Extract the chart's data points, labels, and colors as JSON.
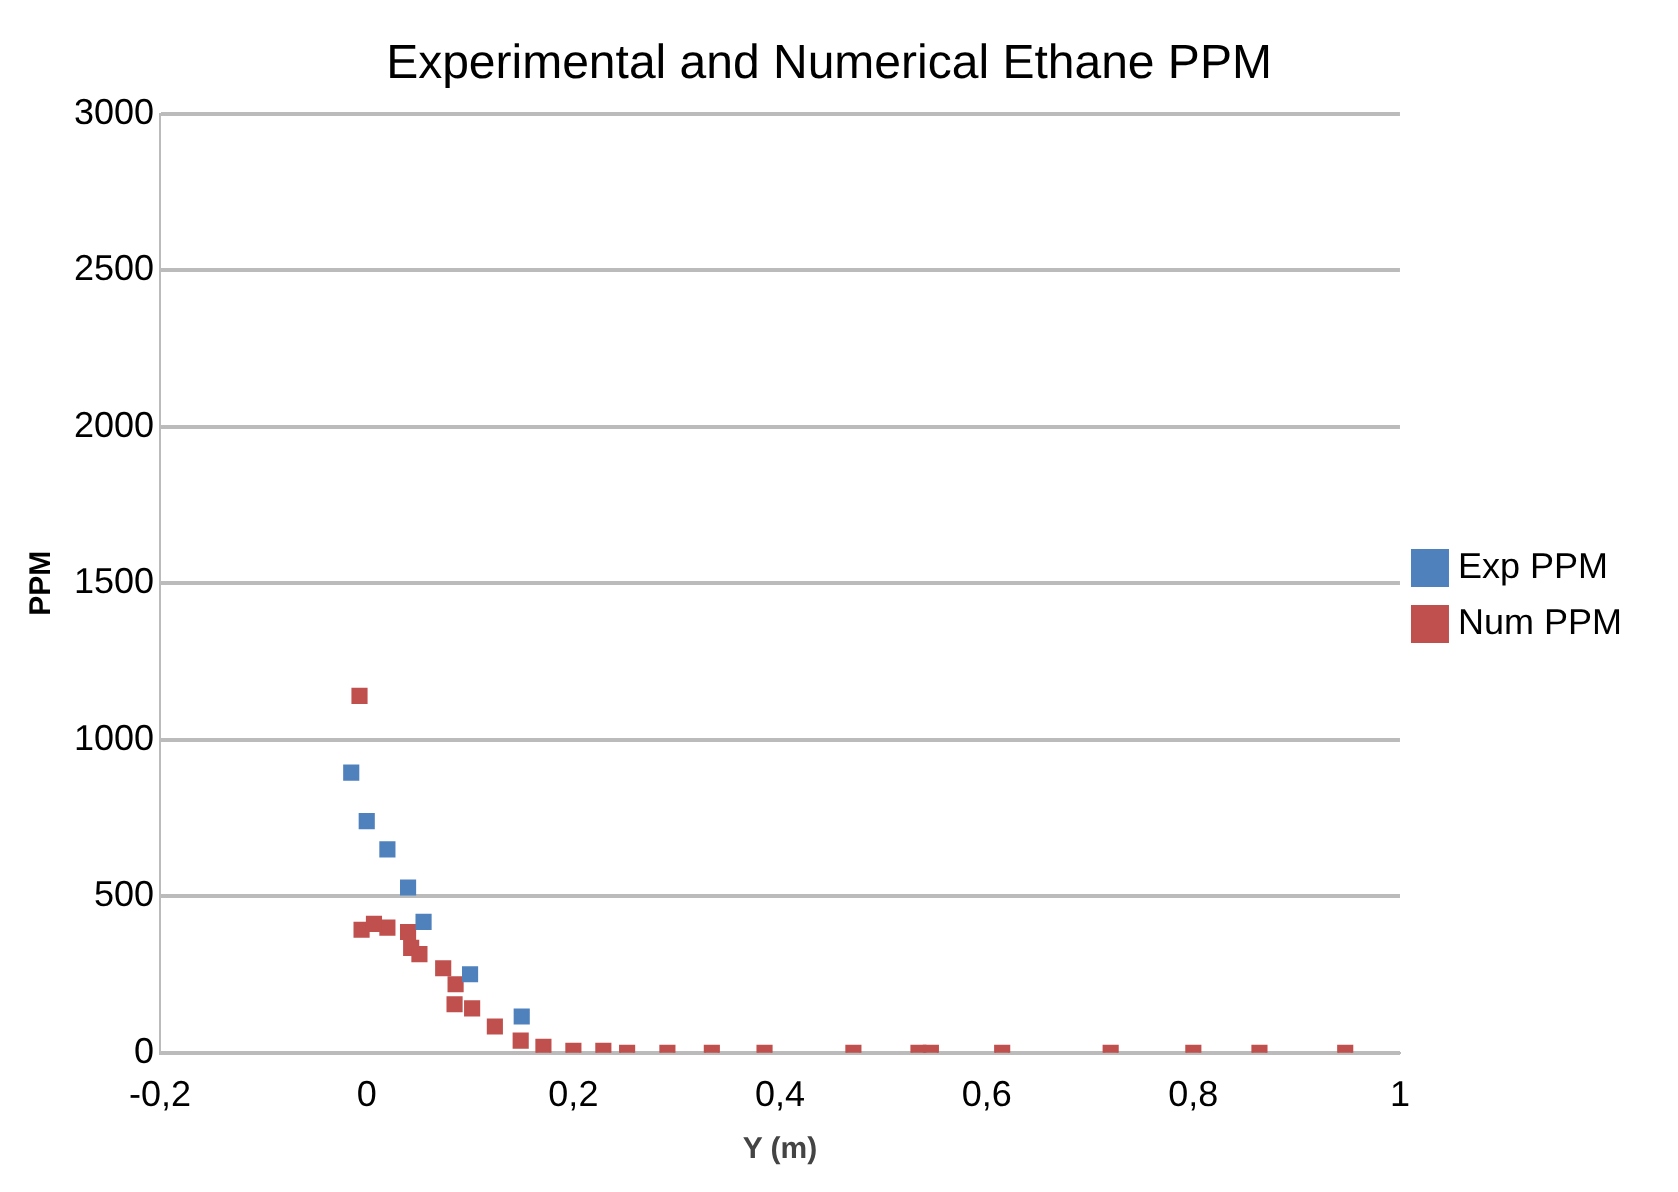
{
  "chart_data": {
    "type": "scatter",
    "title": "Experimental and Numerical Ethane PPM",
    "xlabel": "Y (m)",
    "ylabel": "PPM",
    "xlim": [
      -0.2,
      1
    ],
    "xticks": [
      {
        "value": -0.2,
        "label": "-0,2"
      },
      {
        "value": 0,
        "label": "0"
      },
      {
        "value": 0.2,
        "label": "0,2"
      },
      {
        "value": 0.4,
        "label": "0,4"
      },
      {
        "value": 0.6,
        "label": "0,6"
      },
      {
        "value": 0.8,
        "label": "0,8"
      },
      {
        "value": 1,
        "label": "1"
      }
    ],
    "ylim": [
      0,
      3000
    ],
    "yticks": [
      0,
      500,
      1000,
      1500,
      2000,
      2500,
      3000
    ],
    "grid": "y",
    "legend": "right",
    "marker": "square",
    "series": [
      {
        "name": "Exp PPM",
        "color": "#4f81bd",
        "x": [
          -0.015,
          0,
          0.02,
          0.04,
          0.055,
          0.1,
          0.15
        ],
        "values": [
          895,
          740,
          650,
          528,
          418,
          251,
          116
        ]
      },
      {
        "name": "Num PPM",
        "color": "#c0504d",
        "x": [
          -0.007,
          -0.005,
          0.007,
          0.02,
          0.04,
          0.043,
          0.051,
          0.074,
          0.086,
          0.085,
          0.102,
          0.124,
          0.149,
          0.171,
          0.2,
          0.229,
          0.252,
          0.291,
          0.334,
          0.385,
          0.471,
          0.534,
          0.546,
          0.615,
          0.72,
          0.8,
          0.864,
          0.947
        ],
        "values": [
          1140,
          393,
          412,
          400,
          386,
          335,
          315,
          270,
          219,
          155,
          142,
          84,
          39,
          19,
          6,
          6,
          0,
          0,
          0,
          0,
          0,
          0,
          0,
          0,
          0,
          0,
          0,
          0
        ]
      }
    ]
  }
}
